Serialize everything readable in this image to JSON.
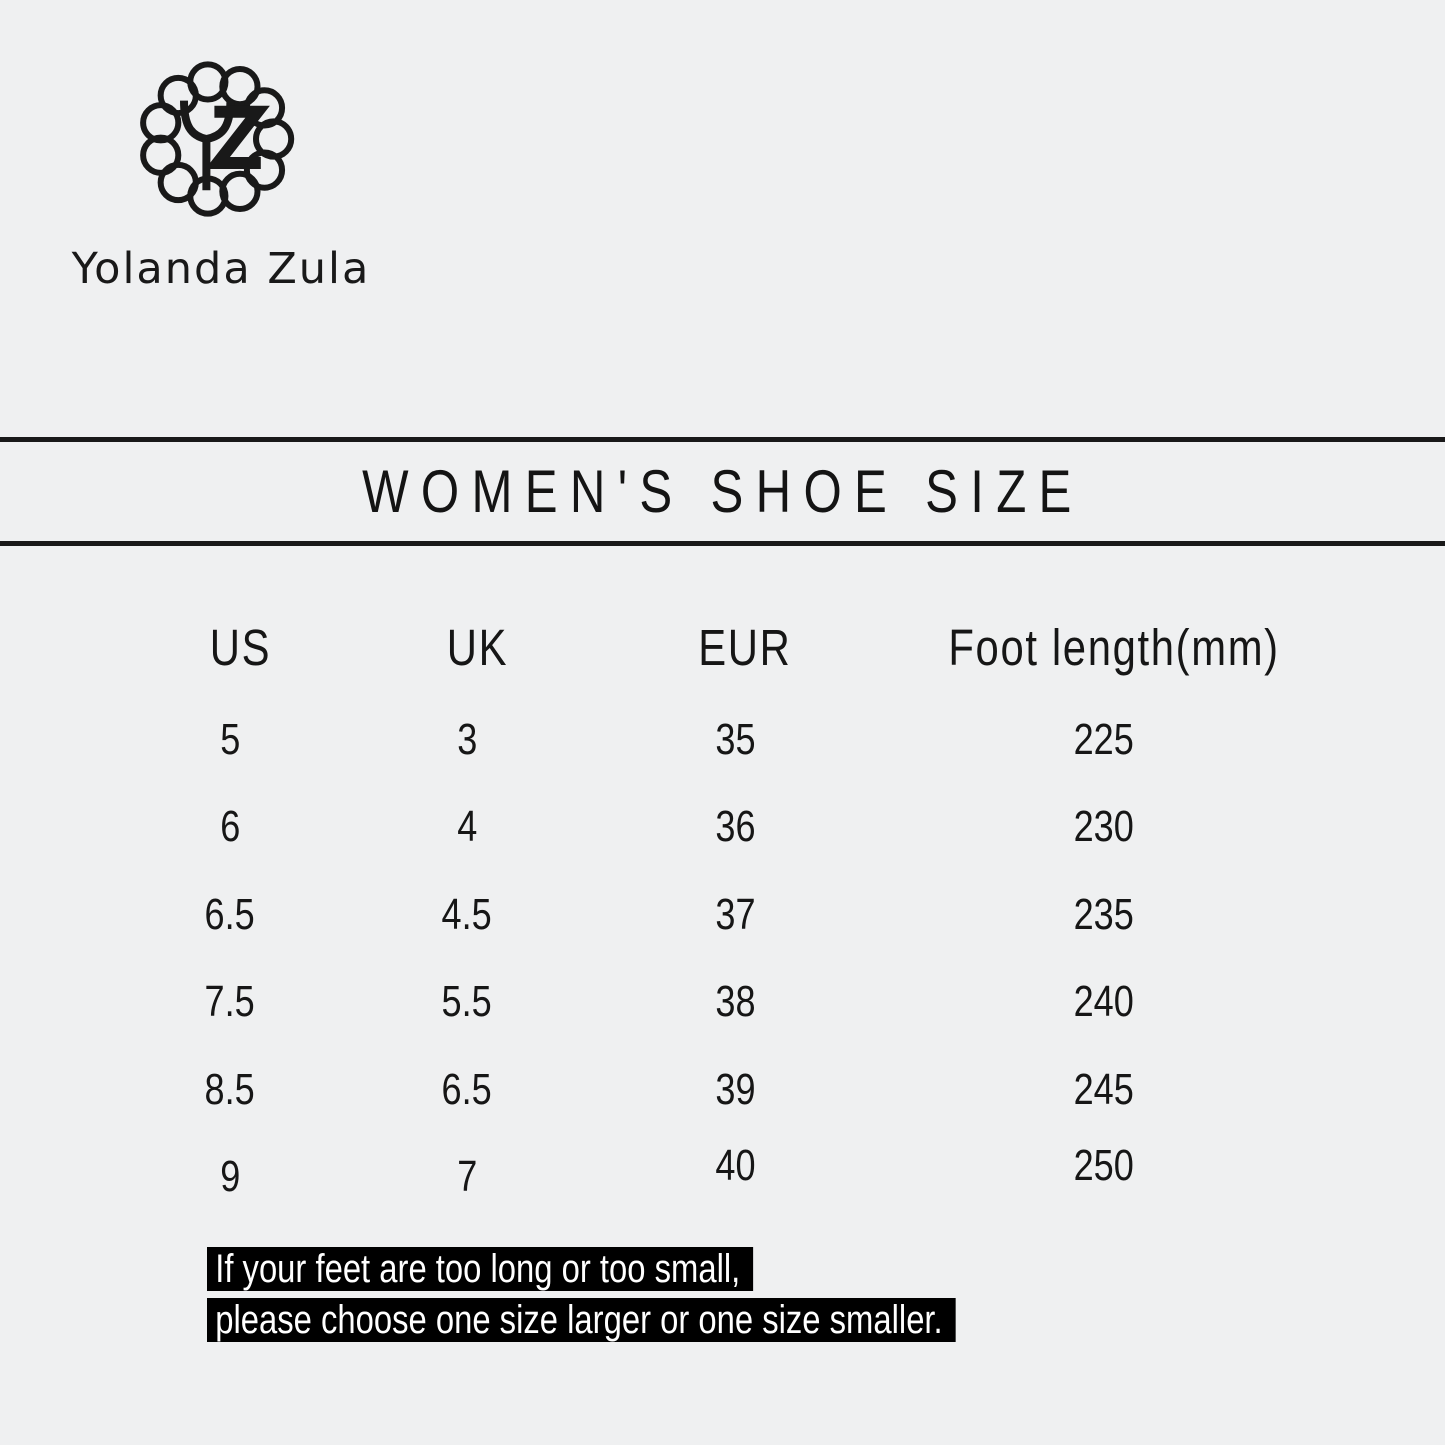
{
  "brand": {
    "monogram": "YZ",
    "name": "Yolanda Zula"
  },
  "banner": {
    "title": "WOMEN'S SHOE SIZE"
  },
  "chart_data": {
    "type": "table",
    "title": "WOMEN'S SHOE SIZE",
    "columns": [
      "US",
      "UK",
      "EUR",
      "Foot length(mm)"
    ],
    "rows": [
      [
        "5",
        "3",
        "35",
        "225"
      ],
      [
        "6",
        "4",
        "36",
        "230"
      ],
      [
        "6.5",
        "4.5",
        "37",
        "235"
      ],
      [
        "7.5",
        "5.5",
        "38",
        "240"
      ],
      [
        "8.5",
        "6.5",
        "39",
        "245"
      ],
      [
        "9",
        "7",
        "40",
        "250"
      ]
    ]
  },
  "note": {
    "line1": "If your feet are too long or too small,",
    "line2": "please choose one size larger or one size smaller."
  },
  "colors": {
    "background": "#eff0f1",
    "ink": "#161616",
    "note_background": "#000000",
    "note_text": "#ffffff"
  }
}
